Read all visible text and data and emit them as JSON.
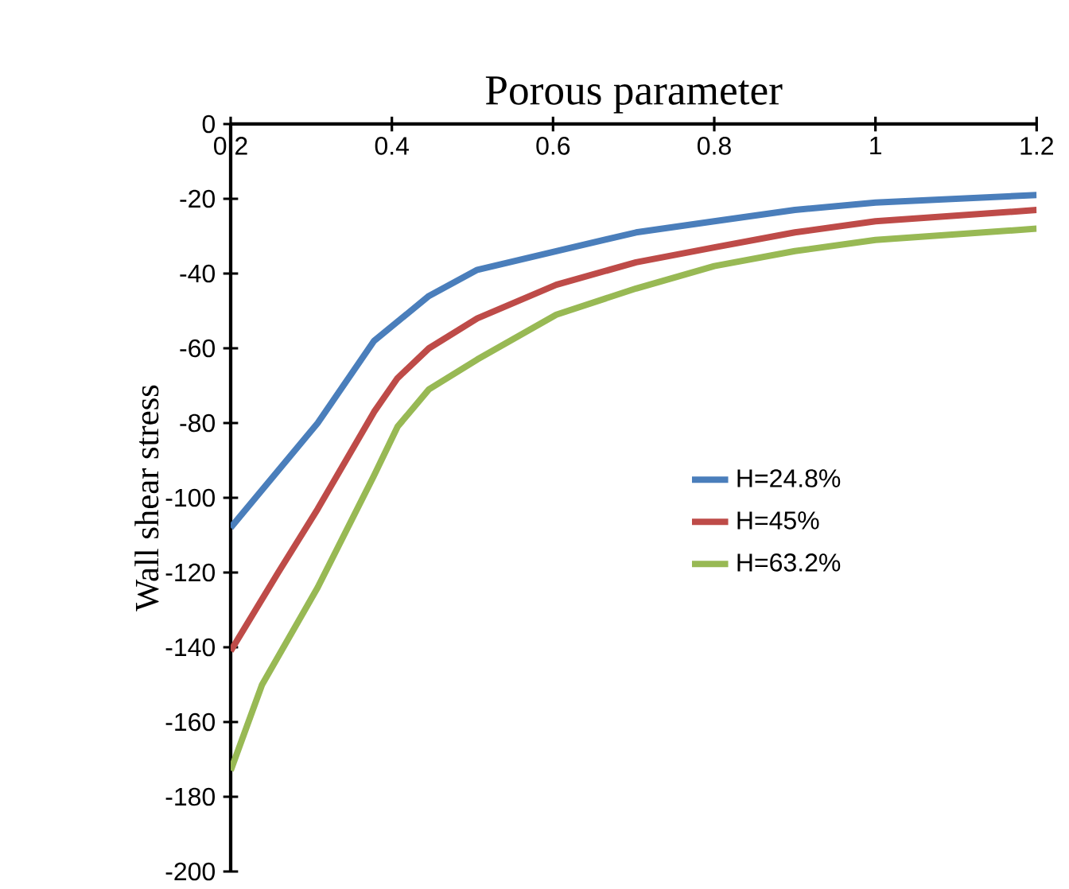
{
  "chart_data": {
    "type": "line",
    "xlabel": "Porous parameter",
    "ylabel": "Wall shear stress",
    "xlim": [
      0.2,
      1.2
    ],
    "ylim": [
      -200,
      0
    ],
    "xticks": [
      0.2,
      0.4,
      0.6,
      0.8,
      1,
      1.2
    ],
    "yticks": [
      -200,
      -180,
      -160,
      -140,
      -120,
      -100,
      -80,
      -60,
      -40,
      -20,
      0
    ],
    "grid": false,
    "legend": "right",
    "marker": "none",
    "line_style": "solid",
    "series": [
      {
        "name": "H=24.8%",
        "color": "#4a7ebb",
        "x": [
          0.2,
          0.308,
          0.378,
          0.446,
          0.506,
          0.604,
          0.703,
          0.8,
          0.9,
          1.0,
          1.2
        ],
        "values": [
          -108,
          -80,
          -58,
          -46,
          -39,
          -34,
          -29,
          -26,
          -23,
          -21,
          -19
        ]
      },
      {
        "name": "H=45%",
        "color": "#be4b48",
        "x": [
          0.2,
          0.259,
          0.308,
          0.378,
          0.407,
          0.446,
          0.506,
          0.604,
          0.703,
          0.8,
          0.9,
          1.0,
          1.2
        ],
        "values": [
          -141,
          -120,
          -103,
          -77,
          -68,
          -60,
          -52,
          -43,
          -37,
          -33,
          -29,
          -26,
          -23
        ]
      },
      {
        "name": "H=63.2%",
        "color": "#98b954",
        "x": [
          0.2,
          0.239,
          0.308,
          0.378,
          0.407,
          0.446,
          0.506,
          0.604,
          0.703,
          0.8,
          0.9,
          1.0,
          1.2
        ],
        "values": [
          -173,
          -150,
          -124,
          -94,
          -81,
          -71,
          -63,
          -51,
          -44,
          -38,
          -34,
          -31,
          -28
        ]
      }
    ]
  }
}
